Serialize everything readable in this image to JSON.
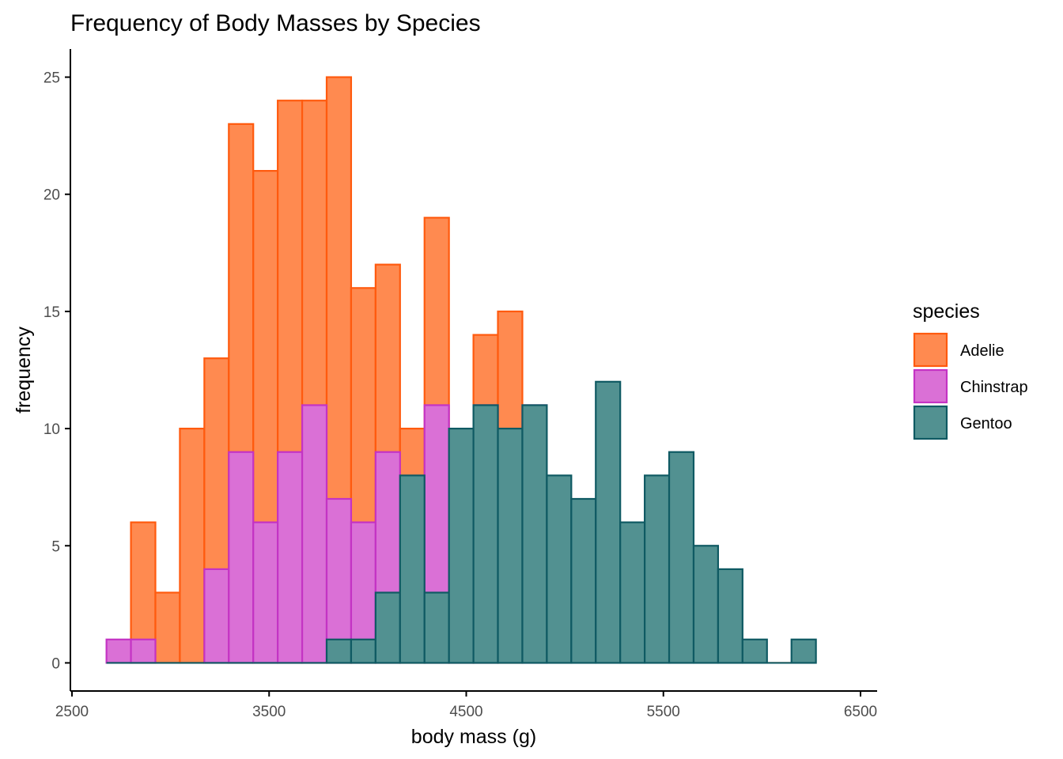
{
  "chart_data": {
    "type": "bar",
    "title": "Frequency of Body Masses by Species",
    "xlabel": "body mass (g)",
    "ylabel": "frequency",
    "xlim": [
      2500,
      6500
    ],
    "ylim": [
      -1.2,
      26.2
    ],
    "bin_start": 2675,
    "bin_width": 124.1,
    "x_ticks": [
      2500,
      3500,
      4500,
      5500,
      6500
    ],
    "x_tick_labels": [
      "2500",
      "3500",
      "4500",
      "5500",
      "6500"
    ],
    "y_ticks": [
      0,
      5,
      10,
      15,
      20,
      25
    ],
    "y_tick_labels": [
      "0",
      "5",
      "10",
      "15",
      "20",
      "25"
    ],
    "grid": false,
    "legend": {
      "title": "species",
      "position": "right"
    },
    "series": [
      {
        "name": "Adelie",
        "fill": "#FF8A50",
        "stroke": "#FF5A0E",
        "values": [
          0,
          6,
          3,
          10,
          13,
          23,
          21,
          24,
          24,
          25,
          16,
          17,
          10,
          19,
          9,
          14,
          15,
          0,
          0,
          0,
          0,
          0,
          0,
          0,
          0,
          0,
          0,
          0,
          0,
          0
        ]
      },
      {
        "name": "Chinstrap",
        "fill": "#DA70D6",
        "stroke": "#C433C4",
        "values": [
          1,
          1,
          0,
          0,
          4,
          9,
          6,
          9,
          11,
          7,
          6,
          9,
          0,
          11,
          5,
          11,
          0,
          11,
          0,
          0,
          0,
          0,
          0,
          0,
          0,
          0,
          0,
          0,
          0,
          0
        ]
      },
      {
        "name": "Gentoo",
        "fill": "#529191",
        "stroke": "#0F5A63",
        "values": [
          0,
          0,
          0,
          0,
          0,
          0,
          0,
          0,
          0,
          1,
          1,
          3,
          8,
          3,
          10,
          11,
          10,
          11,
          8,
          7,
          12,
          6,
          8,
          9,
          5,
          4,
          1,
          0,
          1,
          0
        ]
      }
    ]
  }
}
